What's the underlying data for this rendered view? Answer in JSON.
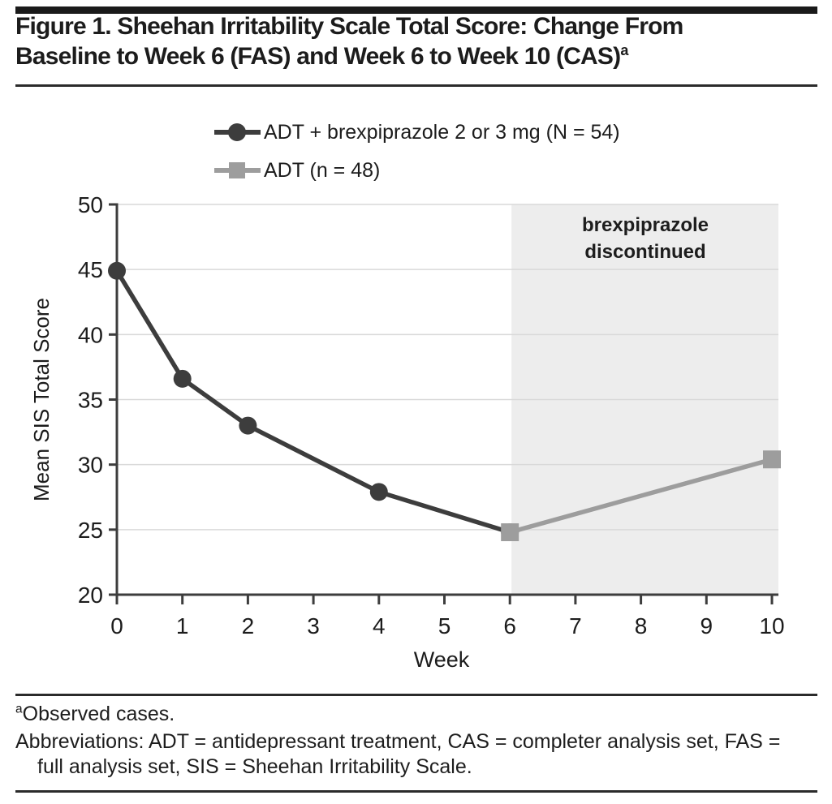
{
  "header": {
    "title_lines": [
      "Figure 1. Sheehan Irritability Scale Total Score: Change From",
      "Baseline to Week 6 (FAS) and Week 6 to Week 10 (CAS)"
    ],
    "title_superscript": "a"
  },
  "legend": {
    "items": [
      {
        "label": "ADT + brexpiprazole 2 or 3 mg  (N = 54)",
        "marker": "circle",
        "color": "#3d3d3d"
      },
      {
        "label": "ADT (n = 48)",
        "marker": "square",
        "color": "#9d9d9d"
      }
    ]
  },
  "chart_data": {
    "type": "line",
    "title": "",
    "xlabel": "Week",
    "ylabel": "Mean SIS Total Score",
    "xlim": [
      0,
      10.1
    ],
    "ylim": [
      20,
      50
    ],
    "x_ticks": [
      0,
      1,
      2,
      3,
      4,
      5,
      6,
      7,
      8,
      9,
      10
    ],
    "y_ticks": [
      20,
      25,
      30,
      35,
      40,
      45,
      50
    ],
    "grid": "horizontal",
    "legend_position": "top",
    "series": [
      {
        "name": "ADT + brexpiprazole 2 or 3 mg (N = 54)",
        "marker": "circle",
        "color": "#3d3d3d",
        "x": [
          0,
          1,
          2,
          4,
          6
        ],
        "y": [
          44.9,
          36.6,
          33.0,
          27.9,
          24.8
        ]
      },
      {
        "name": "ADT (n = 48)",
        "marker": "square",
        "color": "#9d9d9d",
        "x": [
          6,
          10
        ],
        "y": [
          24.8,
          30.4
        ]
      }
    ],
    "shaded_region": {
      "x_start": 6,
      "x_end": 10.1,
      "label": "brexpiprazole discontinued",
      "color": "#ededed"
    }
  },
  "colors": {
    "dark_series": "#3d3d3d",
    "gray_series": "#9d9d9d",
    "gridline": "#d9d9d9",
    "shade": "#ededed",
    "text": "#1d1d1d"
  },
  "footer": {
    "note_superscript": "a",
    "note_text": "Observed cases.",
    "abbreviations": "Abbreviations: ADT = antidepressant treatment, CAS = completer analysis set, FAS = full analysis set, SIS = Sheehan Irritability Scale."
  }
}
